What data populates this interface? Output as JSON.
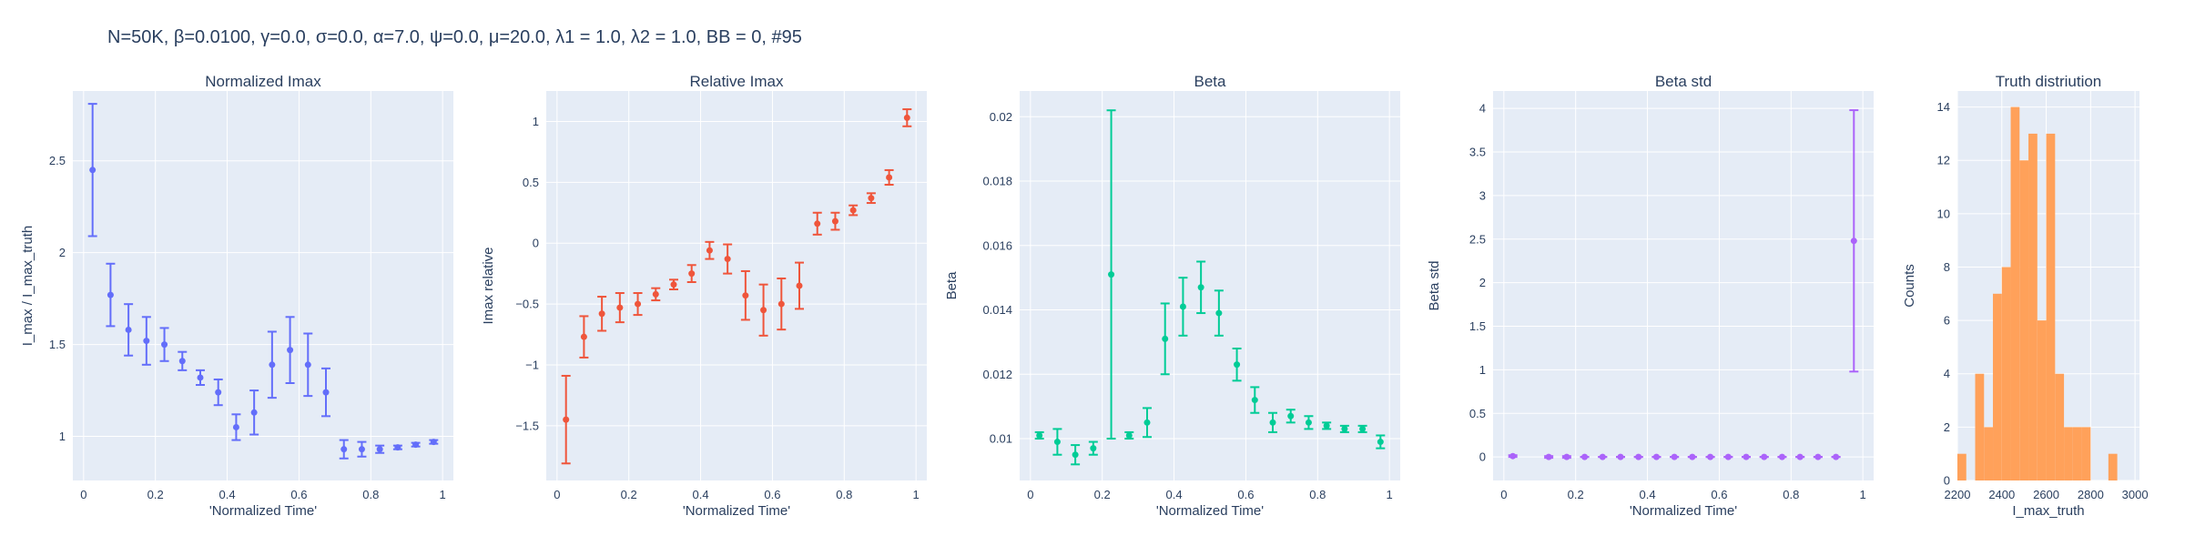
{
  "figure": {
    "title": "N=50K, β=0.0100, γ=0.0, σ=0.0,  α=7.0, ψ=0.0, μ=20.0, λ1 = 1.0, λ2 = 1.0, BB = 0, #95"
  },
  "colors": {
    "plot_bg": "#e5ecf6",
    "grid": "#ffffff",
    "text": "#2a3f5f",
    "series": [
      "#636efa",
      "#ef553b",
      "#00cc96",
      "#ab63fa",
      "#ffa15a"
    ]
  },
  "chart_data": [
    {
      "type": "scatter",
      "title": "Normalized Imax",
      "xlabel": "'Normalized Time'",
      "ylabel": "I_max / I_max_truth",
      "xlim": [
        -0.03,
        1.03
      ],
      "ylim": [
        0.76,
        2.88
      ],
      "xticks": [
        0,
        0.2,
        0.4,
        0.6,
        0.8,
        1
      ],
      "xticklabels": [
        "0",
        "0.2",
        "0.4",
        "0.6",
        "0.8",
        "1"
      ],
      "yticks": [
        1,
        1.5,
        2,
        2.5
      ],
      "yticklabels": [
        "1",
        "1.5",
        "2",
        "2.5"
      ],
      "color": "#636efa",
      "x": [
        0.025,
        0.075,
        0.125,
        0.175,
        0.225,
        0.275,
        0.325,
        0.375,
        0.425,
        0.475,
        0.525,
        0.575,
        0.625,
        0.675,
        0.725,
        0.775,
        0.825,
        0.875,
        0.925,
        0.975
      ],
      "y": [
        2.45,
        1.77,
        1.58,
        1.52,
        1.5,
        1.41,
        1.32,
        1.24,
        1.05,
        1.13,
        1.39,
        1.47,
        1.39,
        1.24,
        0.93,
        0.93,
        0.93,
        0.94,
        0.955,
        0.97
      ],
      "err": [
        0.36,
        0.17,
        0.14,
        0.13,
        0.09,
        0.05,
        0.04,
        0.07,
        0.07,
        0.12,
        0.18,
        0.18,
        0.17,
        0.13,
        0.05,
        0.04,
        0.02,
        0.01,
        0.01,
        0.01
      ]
    },
    {
      "type": "scatter",
      "title": "Relative Imax",
      "xlabel": "'Normalized Time'",
      "ylabel": "Imax relative",
      "xlim": [
        -0.03,
        1.03
      ],
      "ylim": [
        -1.95,
        1.25
      ],
      "xticks": [
        0,
        0.2,
        0.4,
        0.6,
        0.8,
        1
      ],
      "xticklabels": [
        "0",
        "0.2",
        "0.4",
        "0.6",
        "0.8",
        "1"
      ],
      "yticks": [
        -1.5,
        -1,
        -0.5,
        0,
        0.5,
        1
      ],
      "yticklabels": [
        "−1.5",
        "−1",
        "−0.5",
        "0",
        "0.5",
        "1"
      ],
      "color": "#ef553b",
      "x": [
        0.025,
        0.075,
        0.125,
        0.175,
        0.225,
        0.275,
        0.325,
        0.375,
        0.425,
        0.475,
        0.525,
        0.575,
        0.625,
        0.675,
        0.725,
        0.775,
        0.825,
        0.875,
        0.925,
        0.975
      ],
      "y": [
        -1.45,
        -0.77,
        -0.58,
        -0.53,
        -0.5,
        -0.42,
        -0.34,
        -0.25,
        -0.06,
        -0.13,
        -0.43,
        -0.55,
        -0.5,
        -0.35,
        0.16,
        0.18,
        0.27,
        0.37,
        0.54,
        1.03
      ],
      "err": [
        0.36,
        0.17,
        0.14,
        0.12,
        0.09,
        0.05,
        0.04,
        0.07,
        0.07,
        0.12,
        0.2,
        0.21,
        0.21,
        0.19,
        0.09,
        0.07,
        0.04,
        0.04,
        0.06,
        0.07
      ]
    },
    {
      "type": "scatter",
      "title": "Beta",
      "xlabel": "'Normalized Time'",
      "ylabel": "Beta",
      "xlim": [
        -0.03,
        1.03
      ],
      "ylim": [
        0.0087,
        0.0208
      ],
      "xticks": [
        0,
        0.2,
        0.4,
        0.6,
        0.8,
        1
      ],
      "xticklabels": [
        "0",
        "0.2",
        "0.4",
        "0.6",
        "0.8",
        "1"
      ],
      "yticks": [
        0.01,
        0.012,
        0.014,
        0.016,
        0.018,
        0.02
      ],
      "yticklabels": [
        "0.01",
        "0.012",
        "0.014",
        "0.016",
        "0.018",
        "0.02"
      ],
      "color": "#00cc96",
      "x": [
        0.025,
        0.075,
        0.125,
        0.175,
        0.225,
        0.275,
        0.325,
        0.375,
        0.425,
        0.475,
        0.525,
        0.575,
        0.625,
        0.675,
        0.725,
        0.775,
        0.825,
        0.875,
        0.925,
        0.975
      ],
      "y": [
        0.0101,
        0.0099,
        0.0095,
        0.0097,
        0.0151,
        0.0101,
        0.0105,
        0.0131,
        0.0141,
        0.0147,
        0.0139,
        0.0123,
        0.0112,
        0.0105,
        0.0107,
        0.0105,
        0.0104,
        0.0103,
        0.0103,
        0.0099
      ],
      "err": [
        0.0001,
        0.0004,
        0.0003,
        0.0002,
        0.0051,
        0.0001,
        0.00045,
        0.0011,
        0.0009,
        0.0008,
        0.0007,
        0.0005,
        0.0004,
        0.0003,
        0.0002,
        0.0002,
        0.0001,
        0.0001,
        0.0001,
        0.0002
      ]
    },
    {
      "type": "scatter",
      "title": "Beta std",
      "xlabel": "'Normalized Time'",
      "ylabel": "Beta std",
      "xlim": [
        -0.03,
        1.03
      ],
      "ylim": [
        -0.27,
        4.2
      ],
      "xticks": [
        0,
        0.2,
        0.4,
        0.6,
        0.8,
        1
      ],
      "xticklabels": [
        "0",
        "0.2",
        "0.4",
        "0.6",
        "0.8",
        "1"
      ],
      "yticks": [
        0,
        0.5,
        1,
        1.5,
        2,
        2.5,
        3,
        3.5,
        4
      ],
      "yticklabels": [
        "0",
        "0.5",
        "1",
        "1.5",
        "2",
        "2.5",
        "3",
        "3.5",
        "4"
      ],
      "color": "#ab63fa",
      "x": [
        0.025,
        0.125,
        0.175,
        0.225,
        0.275,
        0.325,
        0.375,
        0.425,
        0.475,
        0.525,
        0.575,
        0.625,
        0.675,
        0.725,
        0.775,
        0.825,
        0.875,
        0.925,
        0.975
      ],
      "y": [
        0.01,
        0.0,
        0.0,
        0.0,
        0.0,
        0.0,
        0.0,
        0.0,
        0.0,
        0.0,
        0.0,
        0.0,
        0.0,
        0.0,
        0.0,
        0.0,
        0.0,
        0.0,
        2.48
      ],
      "err": [
        0.01,
        0.01,
        0.01,
        0.0,
        0.0,
        0.0,
        0.0,
        0.0,
        0.0,
        0.0,
        0.0,
        0.0,
        0.0,
        0.0,
        0.0,
        0.0,
        0.0,
        0.0,
        1.5
      ]
    },
    {
      "type": "histogram",
      "title": "Truth distriution",
      "xlabel": "I_max_truth",
      "ylabel": "Counts",
      "xlim": [
        2200,
        3020
      ],
      "ylim": [
        0,
        14.6
      ],
      "xticks": [
        2200,
        2400,
        2600,
        2800,
        3000
      ],
      "xticklabels": [
        "2200",
        "2400",
        "2600",
        "2800",
        "3000"
      ],
      "yticks": [
        0,
        2,
        4,
        6,
        8,
        10,
        12,
        14
      ],
      "yticklabels": [
        "0",
        "2",
        "4",
        "6",
        "8",
        "10",
        "12",
        "14"
      ],
      "color": "#ffa15a",
      "bin_edges": [
        2200,
        2240,
        2280,
        2320,
        2360,
        2400,
        2440,
        2480,
        2520,
        2560,
        2600,
        2640,
        2680,
        2720,
        2760,
        2800,
        2840,
        2880,
        2920,
        2960,
        3000
      ],
      "counts": [
        1,
        0,
        4,
        2,
        7,
        8,
        14,
        12,
        13,
        6,
        13,
        4,
        2,
        2,
        2,
        0,
        0,
        1,
        0,
        0
      ]
    }
  ]
}
